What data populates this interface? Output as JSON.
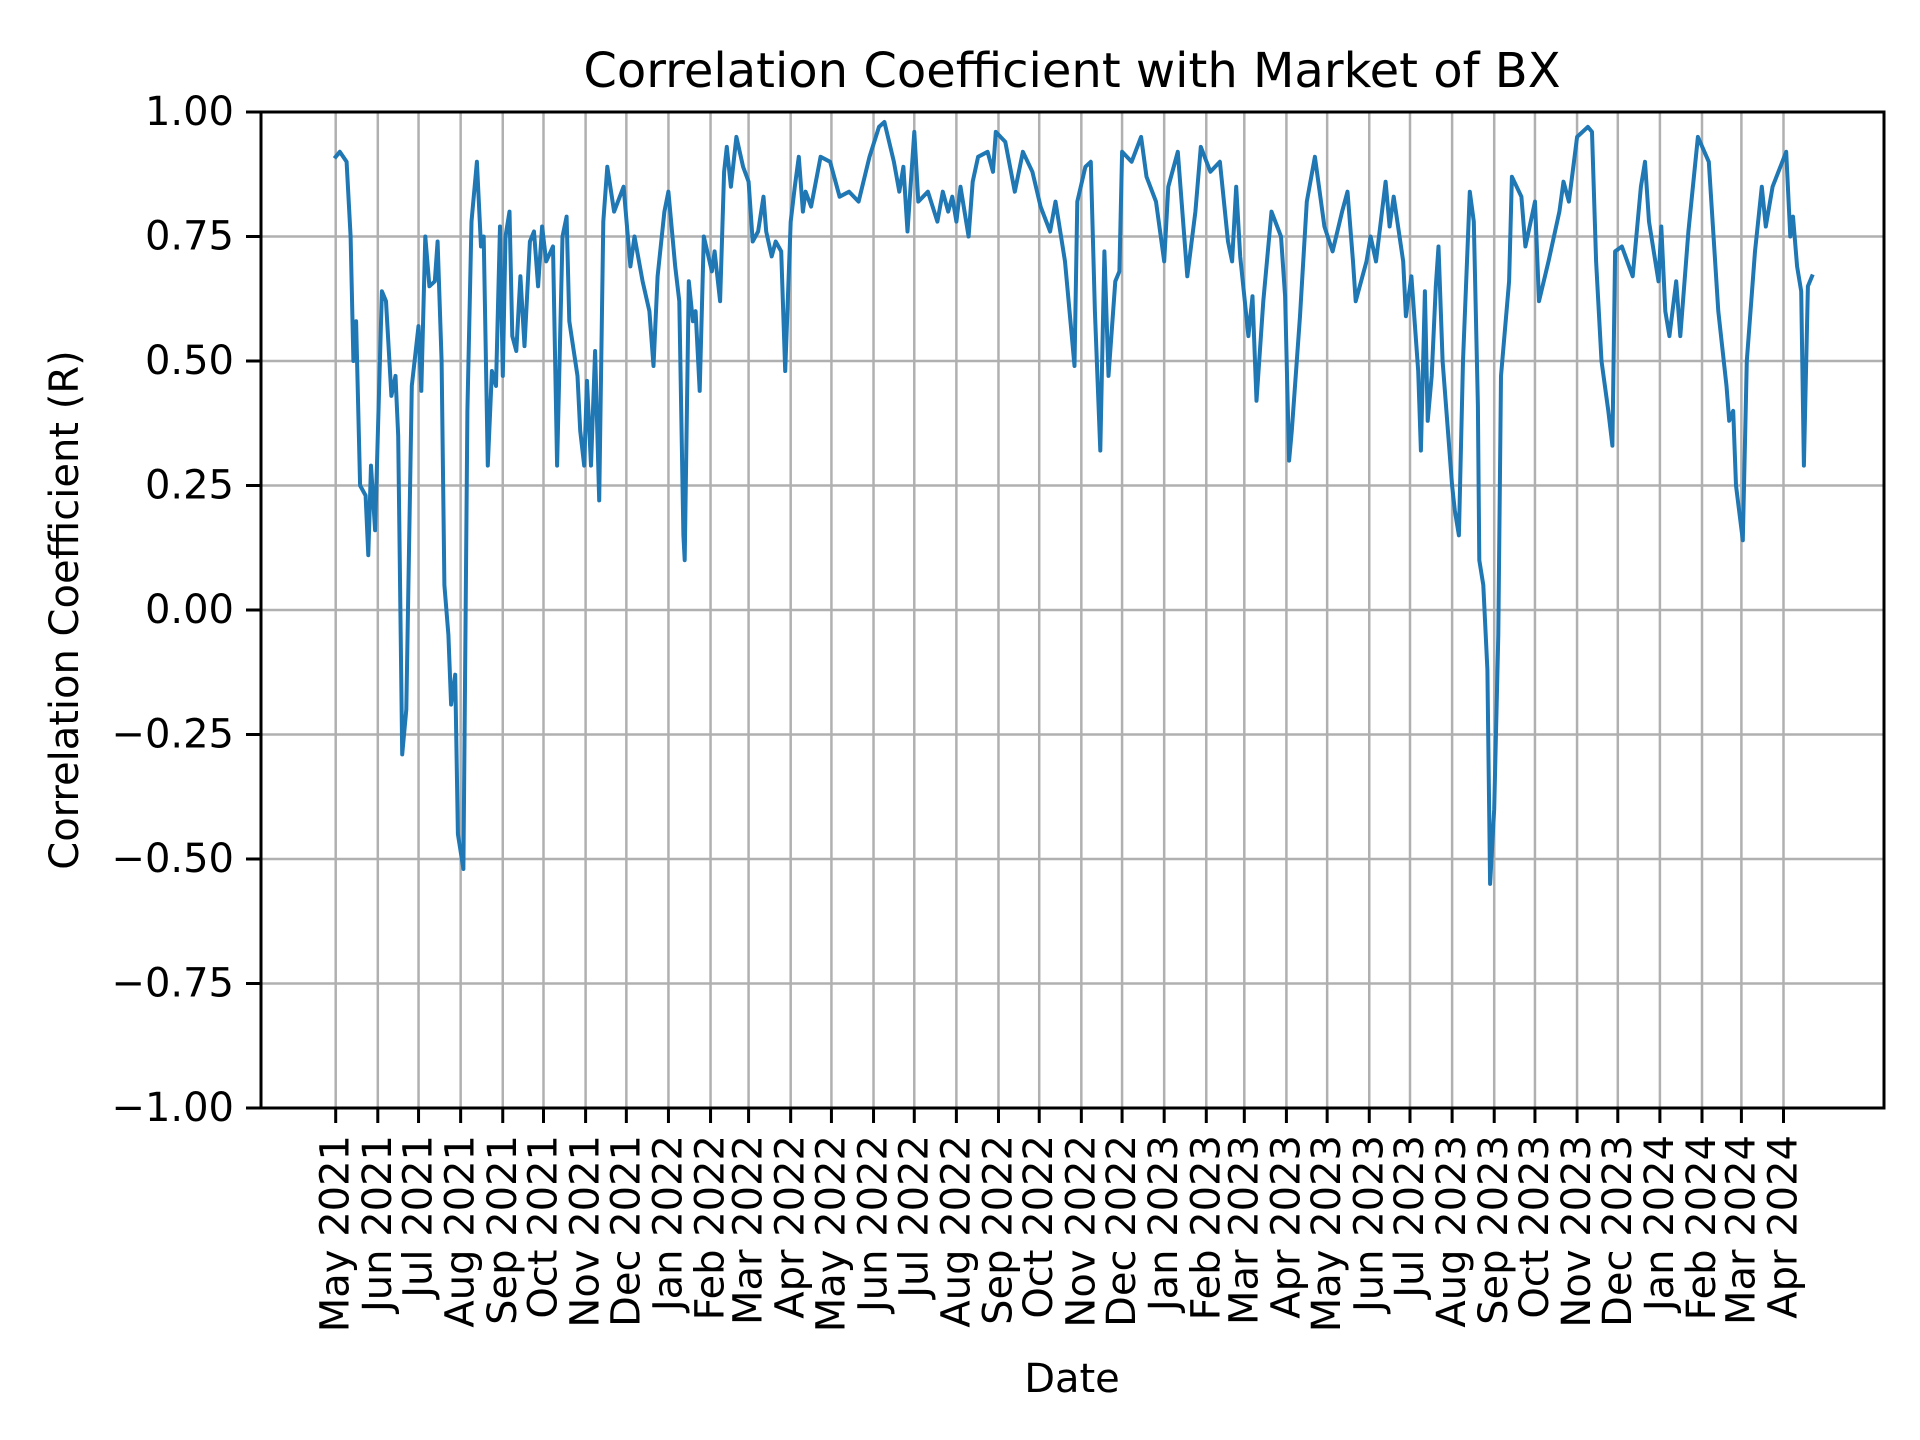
{
  "chart_data": {
    "type": "line",
    "title": "Correlation Coefficient with Market of BX",
    "xlabel": "Date",
    "ylabel": "Correlation Coefficient (R)",
    "xlim": [
      "2021-03-07",
      "2024-06-14"
    ],
    "ylim": [
      -1.0,
      1.0
    ],
    "yticks": [
      "1.00",
      "0.75",
      "0.50",
      "0.25",
      "0.00",
      "−0.25",
      "−0.50",
      "−0.75",
      "−1.00"
    ],
    "ytick_values": [
      1.0,
      0.75,
      0.5,
      0.25,
      0.0,
      -0.25,
      -0.5,
      -0.75,
      -1.0
    ],
    "xticks": [
      {
        "date": "2021-05-01",
        "label": "May 2021"
      },
      {
        "date": "2021-06-01",
        "label": "Jun 2021"
      },
      {
        "date": "2021-07-01",
        "label": "Jul 2021"
      },
      {
        "date": "2021-08-01",
        "label": "Aug 2021"
      },
      {
        "date": "2021-09-01",
        "label": "Sep 2021"
      },
      {
        "date": "2021-10-01",
        "label": "Oct 2021"
      },
      {
        "date": "2021-11-01",
        "label": "Nov 2021"
      },
      {
        "date": "2021-12-01",
        "label": "Dec 2021"
      },
      {
        "date": "2022-01-01",
        "label": "Jan 2022"
      },
      {
        "date": "2022-02-01",
        "label": "Feb 2022"
      },
      {
        "date": "2022-03-01",
        "label": "Mar 2022"
      },
      {
        "date": "2022-04-01",
        "label": "Apr 2022"
      },
      {
        "date": "2022-05-01",
        "label": "May 2022"
      },
      {
        "date": "2022-06-01",
        "label": "Jun 2022"
      },
      {
        "date": "2022-07-01",
        "label": "Jul 2022"
      },
      {
        "date": "2022-08-01",
        "label": "Aug 2022"
      },
      {
        "date": "2022-09-01",
        "label": "Sep 2022"
      },
      {
        "date": "2022-10-01",
        "label": "Oct 2022"
      },
      {
        "date": "2022-11-01",
        "label": "Nov 2022"
      },
      {
        "date": "2022-12-01",
        "label": "Dec 2022"
      },
      {
        "date": "2023-01-01",
        "label": "Jan 2023"
      },
      {
        "date": "2023-02-01",
        "label": "Feb 2023"
      },
      {
        "date": "2023-03-01",
        "label": "Mar 2023"
      },
      {
        "date": "2023-04-01",
        "label": "Apr 2023"
      },
      {
        "date": "2023-05-01",
        "label": "May 2023"
      },
      {
        "date": "2023-06-01",
        "label": "Jun 2023"
      },
      {
        "date": "2023-07-01",
        "label": "Jul 2023"
      },
      {
        "date": "2023-08-01",
        "label": "Aug 2023"
      },
      {
        "date": "2023-09-01",
        "label": "Sep 2023"
      },
      {
        "date": "2023-10-01",
        "label": "Oct 2023"
      },
      {
        "date": "2023-11-01",
        "label": "Nov 2023"
      },
      {
        "date": "2023-12-01",
        "label": "Dec 2023"
      },
      {
        "date": "2024-01-01",
        "label": "Jan 2024"
      },
      {
        "date": "2024-02-01",
        "label": "Feb 2024"
      },
      {
        "date": "2024-03-01",
        "label": "Mar 2024"
      },
      {
        "date": "2024-04-01",
        "label": "Apr 2024"
      }
    ],
    "grid": true,
    "line_color": "#1f77b4",
    "series": [
      {
        "x": [
          "2021-05-01",
          "2021-05-04",
          "2021-05-09",
          "2021-05-12",
          "2021-05-14",
          "2021-05-16",
          "2021-05-19",
          "2021-05-23",
          "2021-05-25",
          "2021-05-27",
          "2021-05-30",
          "2021-06-04",
          "2021-06-07",
          "2021-06-11",
          "2021-06-14",
          "2021-06-16",
          "2021-06-19",
          "2021-06-22",
          "2021-06-26",
          "2021-07-01",
          "2021-07-03",
          "2021-07-06",
          "2021-07-09",
          "2021-07-13",
          "2021-07-15",
          "2021-07-18",
          "2021-07-20",
          "2021-07-23",
          "2021-07-25",
          "2021-07-28",
          "2021-07-30",
          "2021-08-03",
          "2021-08-06",
          "2021-08-09",
          "2021-08-13",
          "2021-08-16",
          "2021-08-18",
          "2021-08-21",
          "2021-08-24",
          "2021-08-27",
          "2021-08-30",
          "2021-09-01",
          "2021-09-03",
          "2021-09-06",
          "2021-09-08",
          "2021-09-11",
          "2021-09-14",
          "2021-09-17",
          "2021-09-21",
          "2021-09-24",
          "2021-09-27",
          "2021-09-30",
          "2021-10-03",
          "2021-10-08",
          "2021-10-11",
          "2021-10-15",
          "2021-10-18",
          "2021-10-20",
          "2021-10-26",
          "2021-10-28",
          "2021-10-31",
          "2021-11-02",
          "2021-11-05",
          "2021-11-08",
          "2021-11-11",
          "2021-11-14",
          "2021-11-17",
          "2021-11-22",
          "2021-11-29",
          "2021-12-04",
          "2021-12-07",
          "2021-12-13",
          "2021-12-18",
          "2021-12-21",
          "2021-12-24",
          "2021-12-29",
          "2022-01-01",
          "2022-01-06",
          "2022-01-09",
          "2022-01-12",
          "2022-01-13",
          "2022-01-16",
          "2022-01-19",
          "2022-01-21",
          "2022-01-24",
          "2022-01-27",
          "2022-02-02",
          "2022-02-04",
          "2022-02-08",
          "2022-02-11",
          "2022-02-13",
          "2022-02-16",
          "2022-02-20",
          "2022-02-25",
          "2022-03-01",
          "2022-03-04",
          "2022-03-08",
          "2022-03-12",
          "2022-03-14",
          "2022-03-18",
          "2022-03-21",
          "2022-03-25",
          "2022-03-28",
          "2022-04-01",
          "2022-04-04",
          "2022-04-07",
          "2022-04-10",
          "2022-04-12",
          "2022-04-16",
          "2022-04-23",
          "2022-04-30",
          "2022-05-07",
          "2022-05-14",
          "2022-05-21",
          "2022-05-29",
          "2022-06-05",
          "2022-06-09",
          "2022-06-16",
          "2022-06-20",
          "2022-06-23",
          "2022-06-26",
          "2022-07-01",
          "2022-07-04",
          "2022-07-11",
          "2022-07-18",
          "2022-07-22",
          "2022-07-26",
          "2022-07-29",
          "2022-08-01",
          "2022-08-04",
          "2022-08-10",
          "2022-08-13",
          "2022-08-17",
          "2022-08-24",
          "2022-08-28",
          "2022-08-30",
          "2022-09-06",
          "2022-09-13",
          "2022-09-19",
          "2022-09-26",
          "2022-10-02",
          "2022-10-09",
          "2022-10-13",
          "2022-10-20",
          "2022-10-25",
          "2022-10-27",
          "2022-10-29",
          "2022-11-04",
          "2022-11-08",
          "2022-11-11",
          "2022-11-15",
          "2022-11-18",
          "2022-11-21",
          "2022-11-26",
          "2022-11-29",
          "2022-12-01",
          "2022-12-08",
          "2022-12-15",
          "2022-12-19",
          "2022-12-26",
          "2023-01-01",
          "2023-01-04",
          "2023-01-11",
          "2023-01-18",
          "2023-01-24",
          "2023-01-28",
          "2023-02-04",
          "2023-02-11",
          "2023-02-17",
          "2023-02-20",
          "2023-02-23",
          "2023-02-26",
          "2023-03-04",
          "2023-03-07",
          "2023-03-10",
          "2023-03-15",
          "2023-03-21",
          "2023-03-28",
          "2023-03-31",
          "2023-04-03",
          "2023-04-05",
          "2023-04-11",
          "2023-04-16",
          "2023-04-22",
          "2023-04-29",
          "2023-05-05",
          "2023-05-12",
          "2023-05-16",
          "2023-05-20",
          "2023-05-22",
          "2023-05-30",
          "2023-06-02",
          "2023-06-06",
          "2023-06-13",
          "2023-06-16",
          "2023-06-19",
          "2023-06-26",
          "2023-06-28",
          "2023-07-02",
          "2023-07-07",
          "2023-07-09",
          "2023-07-12",
          "2023-07-14",
          "2023-07-17",
          "2023-07-20",
          "2023-07-22",
          "2023-07-25",
          "2023-08-01",
          "2023-08-03",
          "2023-08-06",
          "2023-08-09",
          "2023-08-14",
          "2023-08-17",
          "2023-08-20",
          "2023-08-21",
          "2023-08-24",
          "2023-08-27",
          "2023-08-29",
          "2023-09-01",
          "2023-09-04",
          "2023-09-06",
          "2023-09-12",
          "2023-09-14",
          "2023-09-21",
          "2023-09-24",
          "2023-10-01",
          "2023-10-04",
          "2023-10-11",
          "2023-10-19",
          "2023-10-22",
          "2023-10-26",
          "2023-11-01",
          "2023-11-09",
          "2023-11-12",
          "2023-11-15",
          "2023-11-19",
          "2023-11-24",
          "2023-11-27",
          "2023-11-29",
          "2023-12-04",
          "2023-12-12",
          "2023-12-18",
          "2023-12-21",
          "2023-12-24",
          "2023-12-31",
          "2024-01-02",
          "2024-01-05",
          "2024-01-08",
          "2024-01-13",
          "2024-01-16",
          "2024-01-22",
          "2024-01-29",
          "2024-02-06",
          "2024-02-13",
          "2024-02-19",
          "2024-02-21",
          "2024-02-24",
          "2024-02-26",
          "2024-03-02",
          "2024-03-05",
          "2024-03-11",
          "2024-03-16",
          "2024-03-19",
          "2024-03-24",
          "2024-04-03",
          "2024-04-06",
          "2024-04-08",
          "2024-04-11",
          "2024-04-14",
          "2024-04-16",
          "2024-04-19",
          "2024-04-22"
        ],
        "y": [
          0.91,
          0.92,
          0.9,
          0.75,
          0.5,
          0.58,
          0.25,
          0.23,
          0.11,
          0.29,
          0.16,
          0.64,
          0.62,
          0.43,
          0.47,
          0.35,
          -0.29,
          -0.2,
          0.45,
          0.57,
          0.44,
          0.75,
          0.65,
          0.66,
          0.74,
          0.5,
          0.05,
          -0.05,
          -0.19,
          -0.13,
          -0.45,
          -0.52,
          0.4,
          0.78,
          0.9,
          0.73,
          0.75,
          0.29,
          0.48,
          0.45,
          0.77,
          0.47,
          0.75,
          0.8,
          0.55,
          0.52,
          0.67,
          0.53,
          0.74,
          0.76,
          0.65,
          0.77,
          0.7,
          0.73,
          0.29,
          0.75,
          0.79,
          0.58,
          0.47,
          0.36,
          0.29,
          0.46,
          0.29,
          0.52,
          0.22,
          0.78,
          0.89,
          0.8,
          0.85,
          0.69,
          0.75,
          0.66,
          0.6,
          0.49,
          0.67,
          0.8,
          0.84,
          0.69,
          0.62,
          0.15,
          0.1,
          0.66,
          0.58,
          0.6,
          0.44,
          0.75,
          0.68,
          0.72,
          0.62,
          0.88,
          0.93,
          0.85,
          0.95,
          0.89,
          0.86,
          0.74,
          0.76,
          0.83,
          0.76,
          0.71,
          0.74,
          0.72,
          0.48,
          0.78,
          0.85,
          0.91,
          0.8,
          0.84,
          0.81,
          0.91,
          0.9,
          0.83,
          0.84,
          0.82,
          0.91,
          0.97,
          0.98,
          0.9,
          0.84,
          0.89,
          0.76,
          0.96,
          0.82,
          0.84,
          0.78,
          0.84,
          0.8,
          0.83,
          0.78,
          0.85,
          0.75,
          0.86,
          0.91,
          0.92,
          0.88,
          0.96,
          0.94,
          0.84,
          0.92,
          0.88,
          0.81,
          0.76,
          0.82,
          0.7,
          0.55,
          0.49,
          0.82,
          0.89,
          0.9,
          0.6,
          0.32,
          0.72,
          0.47,
          0.66,
          0.68,
          0.92,
          0.9,
          0.95,
          0.87,
          0.82,
          0.7,
          0.85,
          0.92,
          0.67,
          0.8,
          0.93,
          0.88,
          0.9,
          0.74,
          0.7,
          0.85,
          0.71,
          0.55,
          0.63,
          0.42,
          0.62,
          0.8,
          0.75,
          0.63,
          0.3,
          0.36,
          0.59,
          0.82,
          0.91,
          0.77,
          0.72,
          0.8,
          0.84,
          0.7,
          0.62,
          0.7,
          0.75,
          0.7,
          0.86,
          0.77,
          0.83,
          0.7,
          0.59,
          0.67,
          0.48,
          0.32,
          0.64,
          0.38,
          0.47,
          0.65,
          0.73,
          0.5,
          0.25,
          0.2,
          0.15,
          0.5,
          0.84,
          0.78,
          0.41,
          0.1,
          0.05,
          -0.12,
          -0.55,
          -0.4,
          -0.05,
          0.47,
          0.66,
          0.87,
          0.83,
          0.73,
          0.82,
          0.62,
          0.7,
          0.8,
          0.86,
          0.82,
          0.95,
          0.97,
          0.96,
          0.7,
          0.5,
          0.4,
          0.33,
          0.72,
          0.73,
          0.67,
          0.85,
          0.9,
          0.78,
          0.66,
          0.77,
          0.6,
          0.55,
          0.66,
          0.55,
          0.76,
          0.95,
          0.9,
          0.6,
          0.45,
          0.38,
          0.4,
          0.25,
          0.14,
          0.5,
          0.72,
          0.85,
          0.77,
          0.85,
          0.92,
          0.75,
          0.79,
          0.69,
          0.64,
          0.29,
          0.65,
          0.67
        ]
      }
    ]
  }
}
